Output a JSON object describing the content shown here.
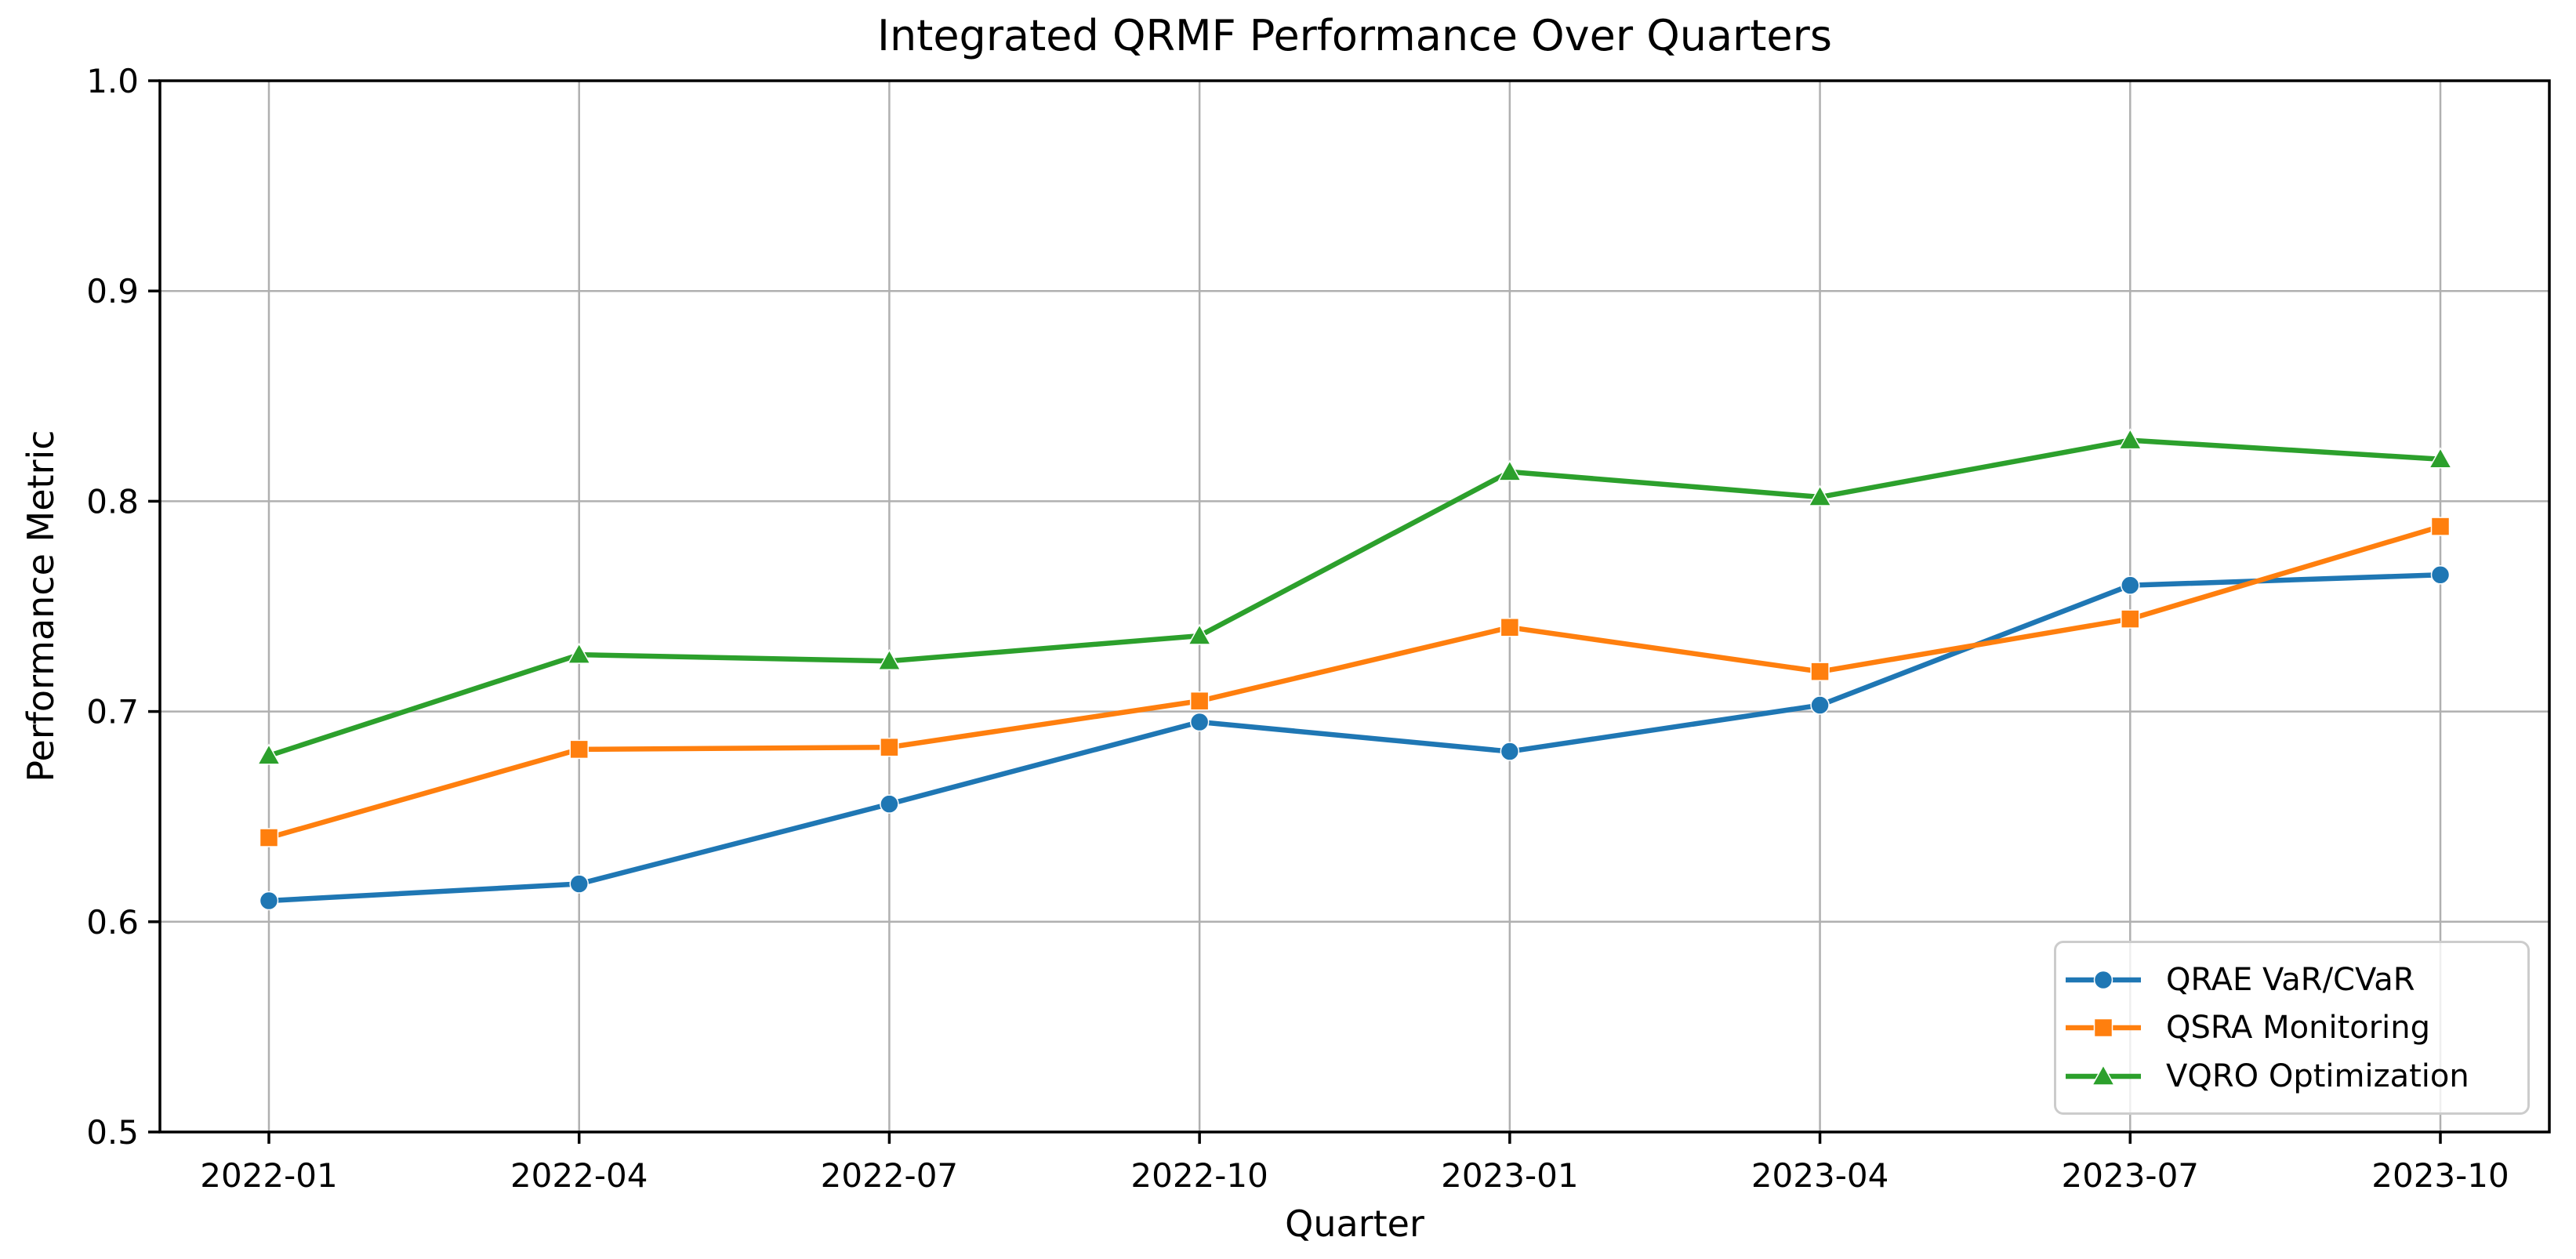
{
  "chart_data": {
    "type": "line",
    "title": "Integrated QRMF Performance Over Quarters",
    "xlabel": "Quarter",
    "ylabel": "Performance Metric",
    "categories": [
      "2022-01",
      "2022-04",
      "2022-07",
      "2022-10",
      "2023-01",
      "2023-04",
      "2023-07",
      "2023-10"
    ],
    "ylim": [
      0.5,
      1.0
    ],
    "yticks": [
      0.5,
      0.6,
      0.7,
      0.8,
      0.9,
      1.0
    ],
    "grid": true,
    "grid_color": "#b0b0b0",
    "legend_position": "lower right",
    "series": [
      {
        "name": "QRAE VaR/CVaR",
        "color": "#1f77b4",
        "marker": "circle",
        "values": [
          0.61,
          0.618,
          0.656,
          0.695,
          0.681,
          0.703,
          0.76,
          0.765
        ]
      },
      {
        "name": "QSRA Monitoring",
        "color": "#ff7f0e",
        "marker": "square",
        "values": [
          0.64,
          0.682,
          0.683,
          0.705,
          0.74,
          0.719,
          0.744,
          0.788
        ]
      },
      {
        "name": "VQRO Optimization",
        "color": "#2ca02c",
        "marker": "triangle",
        "values": [
          0.679,
          0.727,
          0.724,
          0.736,
          0.814,
          0.802,
          0.829,
          0.82
        ]
      }
    ]
  }
}
